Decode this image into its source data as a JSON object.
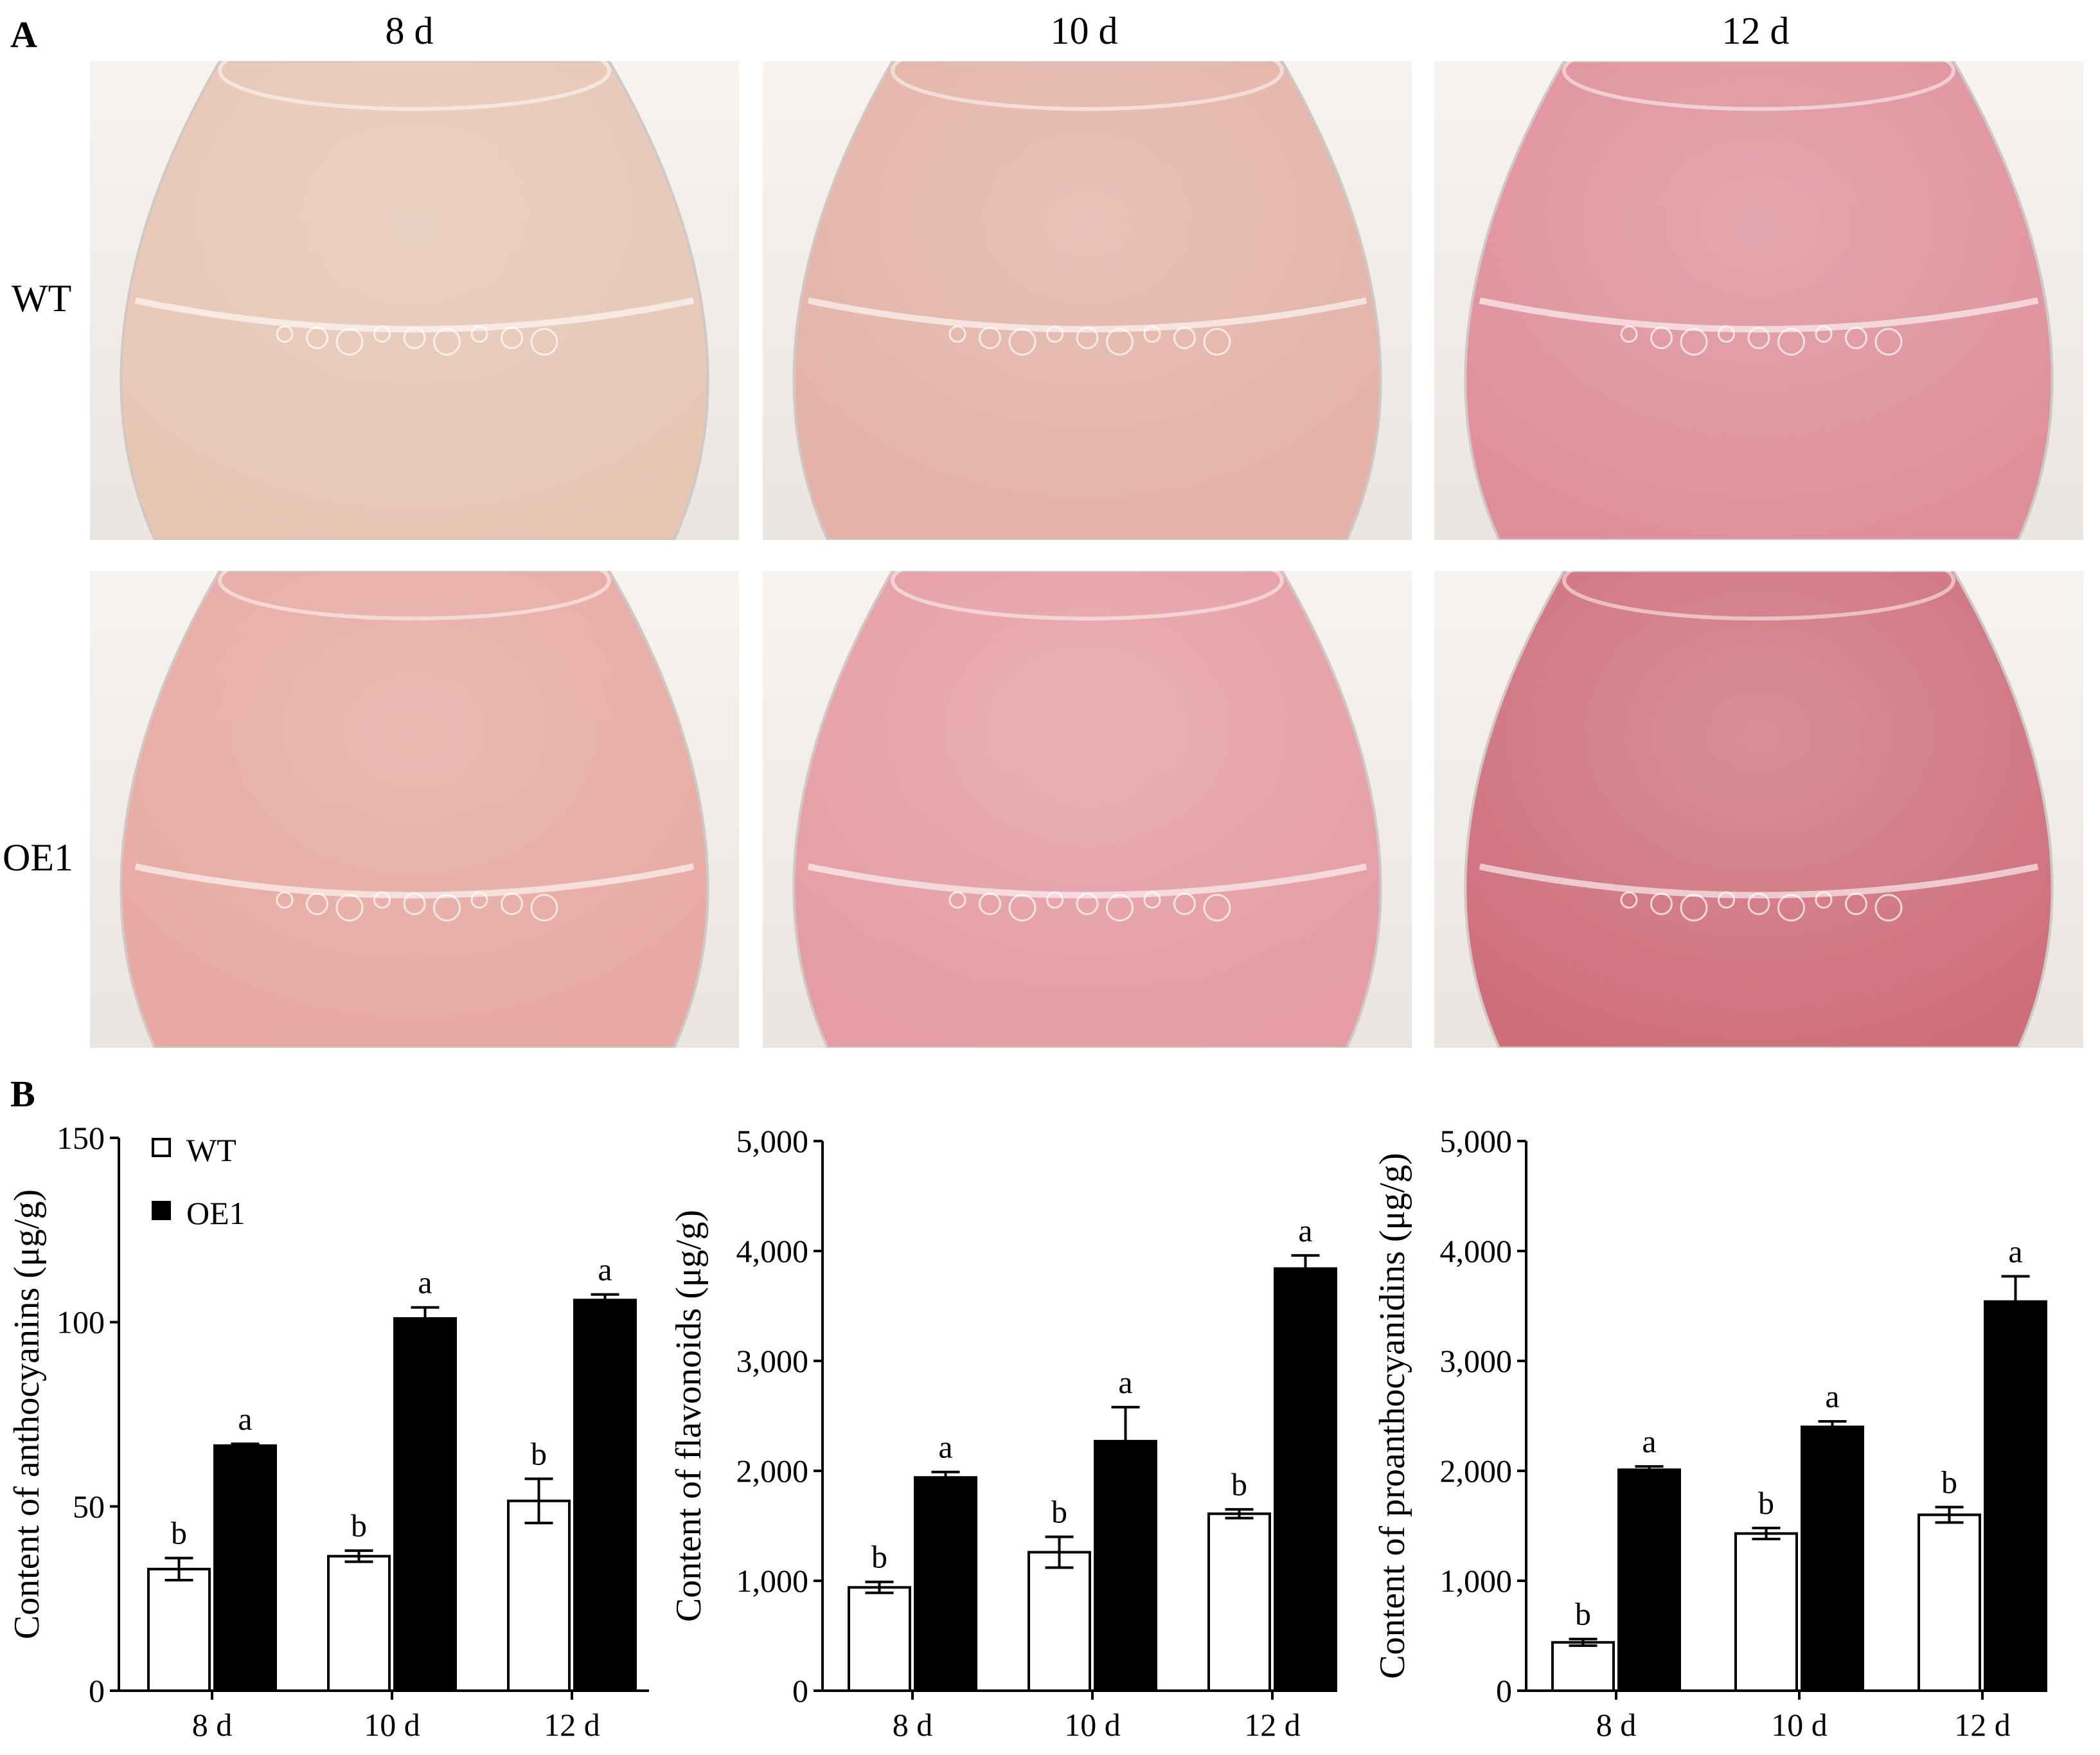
{
  "panels": {
    "a": "A",
    "b": "B"
  },
  "photo_grid": {
    "columns": [
      "8 d",
      "10 d",
      "12 d"
    ],
    "rows": [
      "WT",
      "OE1"
    ],
    "colors": {
      "WT": [
        "#e8c6b4",
        "#e4b2a6",
        "#df8f9a"
      ],
      "OE1": [
        "#e7a9a1",
        "#e59ca3",
        "#cf6f7c"
      ]
    }
  },
  "legend": {
    "wt": "WT",
    "oe1": "OE1"
  },
  "chart_data": [
    {
      "type": "bar",
      "categories": [
        "8 d",
        "10 d",
        "12 d"
      ],
      "ylabel": "Content of anthocyanins (μg/g)",
      "ylim": [
        0,
        150
      ],
      "yticks": [
        "0",
        "50",
        "100",
        "150"
      ],
      "ytick_values": [
        0,
        50,
        100,
        150
      ],
      "series": [
        {
          "name": "WT",
          "values": [
            33,
            36.5,
            51.5
          ],
          "errors": [
            3,
            1.5,
            6
          ],
          "letters": [
            "b",
            "b",
            "b"
          ]
        },
        {
          "name": "OE1",
          "values": [
            66.5,
            101,
            106
          ],
          "errors": [
            0.5,
            3,
            1.5
          ],
          "letters": [
            "a",
            "a",
            "a"
          ]
        }
      ]
    },
    {
      "type": "bar",
      "categories": [
        "8 d",
        "10 d",
        "12 d"
      ],
      "ylabel": "Content of flavonoids  (μg/g)",
      "ylim": [
        0,
        5000
      ],
      "yticks": [
        "0",
        "1,000",
        "2,000",
        "3,000",
        "4,000",
        "5,000"
      ],
      "ytick_values": [
        0,
        1000,
        2000,
        3000,
        4000,
        5000
      ],
      "series": [
        {
          "name": "WT",
          "values": [
            940,
            1260,
            1610
          ],
          "errors": [
            50,
            140,
            40
          ],
          "letters": [
            "b",
            "b",
            "b"
          ]
        },
        {
          "name": "OE1",
          "values": [
            1940,
            2270,
            3840
          ],
          "errors": [
            50,
            310,
            120
          ],
          "letters": [
            "a",
            "a",
            "a"
          ]
        }
      ]
    },
    {
      "type": "bar",
      "categories": [
        "8 d",
        "10 d",
        "12 d"
      ],
      "ylabel": "Content of proanthocyanidins (μg/g)",
      "ylim": [
        0,
        5000
      ],
      "yticks": [
        "0",
        "1,000",
        "2,000",
        "3,000",
        "4,000",
        "5,000"
      ],
      "ytick_values": [
        0,
        1000,
        2000,
        3000,
        4000,
        5000
      ],
      "series": [
        {
          "name": "WT",
          "values": [
            440,
            1430,
            1600
          ],
          "errors": [
            30,
            50,
            70
          ],
          "letters": [
            "b",
            "b",
            "b"
          ]
        },
        {
          "name": "OE1",
          "values": [
            2010,
            2400,
            3540
          ],
          "errors": [
            30,
            50,
            230
          ],
          "letters": [
            "a",
            "a",
            "a"
          ]
        }
      ]
    }
  ]
}
